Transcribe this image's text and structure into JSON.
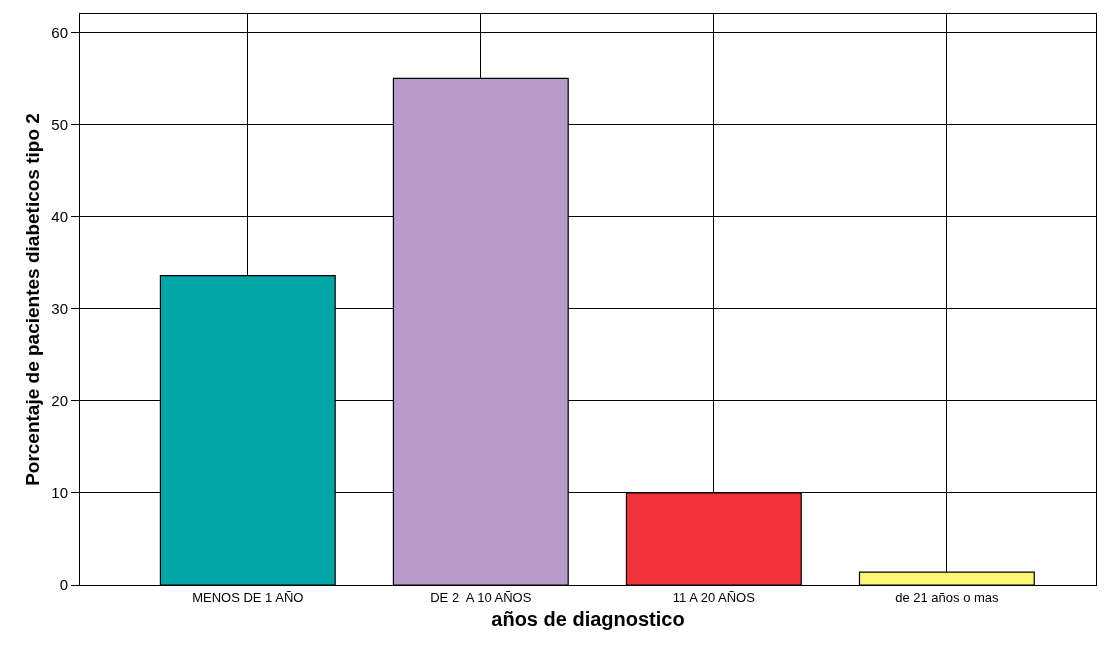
{
  "chart_data": {
    "type": "bar",
    "xlabel": "años de diagnostico",
    "ylabel": "Porcentaje de pacientes diabeticos tipo 2",
    "categories": [
      "MENOS DE 1 AÑO",
      "DE 2  A 10 AÑOS",
      "11 A 20 AÑOS",
      "de 21 años o mas"
    ],
    "values": [
      33.6,
      55.0,
      10.0,
      1.4
    ],
    "colors": [
      "#00a6a6",
      "#b89cca",
      "#f0333b",
      "#fbf779"
    ],
    "ylim": [
      0,
      62
    ],
    "yticks": [
      0,
      10,
      20,
      30,
      40,
      50,
      60
    ],
    "grid": true
  }
}
